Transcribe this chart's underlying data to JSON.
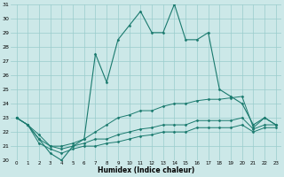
{
  "x": [
    0,
    1,
    2,
    3,
    4,
    5,
    6,
    7,
    8,
    9,
    10,
    11,
    12,
    13,
    14,
    15,
    16,
    17,
    18,
    19,
    20,
    21,
    22,
    23
  ],
  "line1": [
    23.0,
    22.5,
    21.5,
    20.5,
    20.0,
    21.0,
    21.5,
    27.5,
    25.5,
    28.5,
    29.5,
    30.5,
    29.0,
    29.0,
    31.0,
    28.5,
    28.5,
    29.0,
    25.0,
    24.5,
    24.0,
    22.5,
    23.0,
    22.5
  ],
  "line2": [
    23.0,
    22.5,
    21.8,
    21.0,
    21.0,
    21.2,
    21.5,
    22.0,
    22.5,
    23.0,
    23.2,
    23.5,
    23.5,
    23.8,
    24.0,
    24.0,
    24.2,
    24.3,
    24.3,
    24.4,
    24.5,
    22.3,
    23.0,
    22.5
  ],
  "line3": [
    23.0,
    22.5,
    21.5,
    21.0,
    20.8,
    21.0,
    21.2,
    21.5,
    21.5,
    21.8,
    22.0,
    22.2,
    22.3,
    22.5,
    22.5,
    22.5,
    22.8,
    22.8,
    22.8,
    22.8,
    23.0,
    22.2,
    22.5,
    22.5
  ],
  "line4": [
    23.0,
    22.5,
    21.2,
    20.8,
    20.5,
    20.8,
    21.0,
    21.0,
    21.2,
    21.3,
    21.5,
    21.7,
    21.8,
    22.0,
    22.0,
    22.0,
    22.3,
    22.3,
    22.3,
    22.3,
    22.5,
    22.0,
    22.3,
    22.3
  ],
  "bg_color": "#cce8e8",
  "line_color": "#1a7a6e",
  "grid_color": "#99cccc",
  "xlabel": "Humidex (Indice chaleur)",
  "ylim": [
    20,
    31
  ],
  "xlim": [
    -0.5,
    23.5
  ],
  "yticks": [
    20,
    21,
    22,
    23,
    24,
    25,
    26,
    27,
    28,
    29,
    30,
    31
  ],
  "xtick_labels": [
    "0",
    "1",
    "2",
    "3",
    "4",
    "5",
    "6",
    "7",
    "8",
    "9",
    "10",
    "11",
    "12",
    "13",
    "14",
    "15",
    "16",
    "17",
    "18",
    "19",
    "20",
    "21",
    "22",
    "23"
  ]
}
